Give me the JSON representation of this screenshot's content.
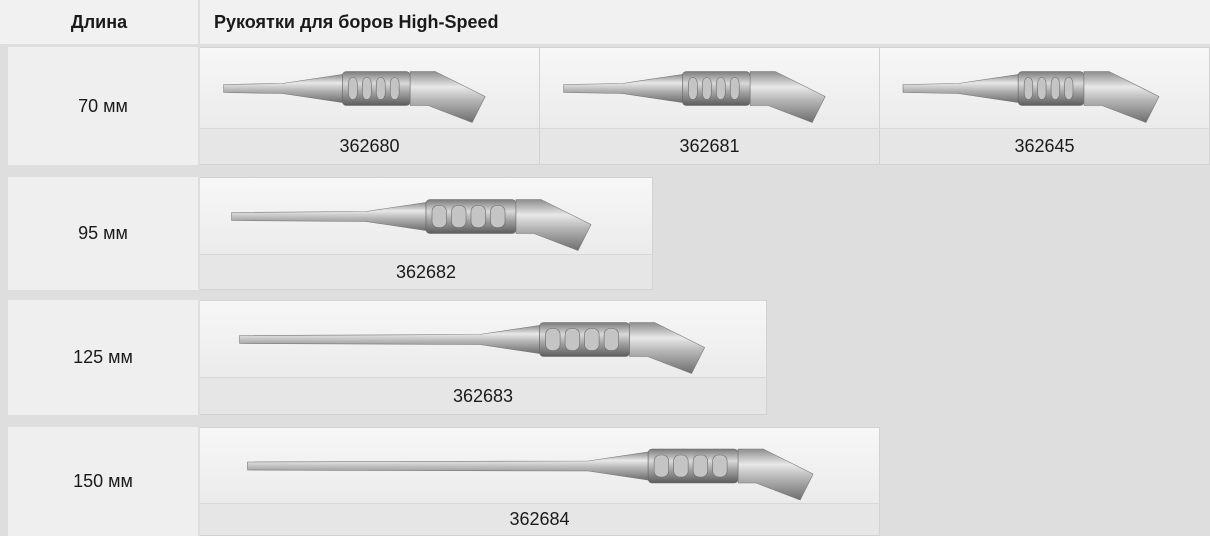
{
  "header": {
    "length": "Длина",
    "handpieces": "Рукоятки для боров High-Speed"
  },
  "rows": [
    {
      "length": "70 мм",
      "items": [
        {
          "code": "362680"
        },
        {
          "code": "362681"
        },
        {
          "code": "362645"
        }
      ]
    },
    {
      "length": "95 мм",
      "items": [
        {
          "code": "362682"
        }
      ]
    },
    {
      "length": "125 мм",
      "items": [
        {
          "code": "362683"
        }
      ]
    },
    {
      "length": "150 мм",
      "items": [
        {
          "code": "362684"
        }
      ]
    }
  ]
}
